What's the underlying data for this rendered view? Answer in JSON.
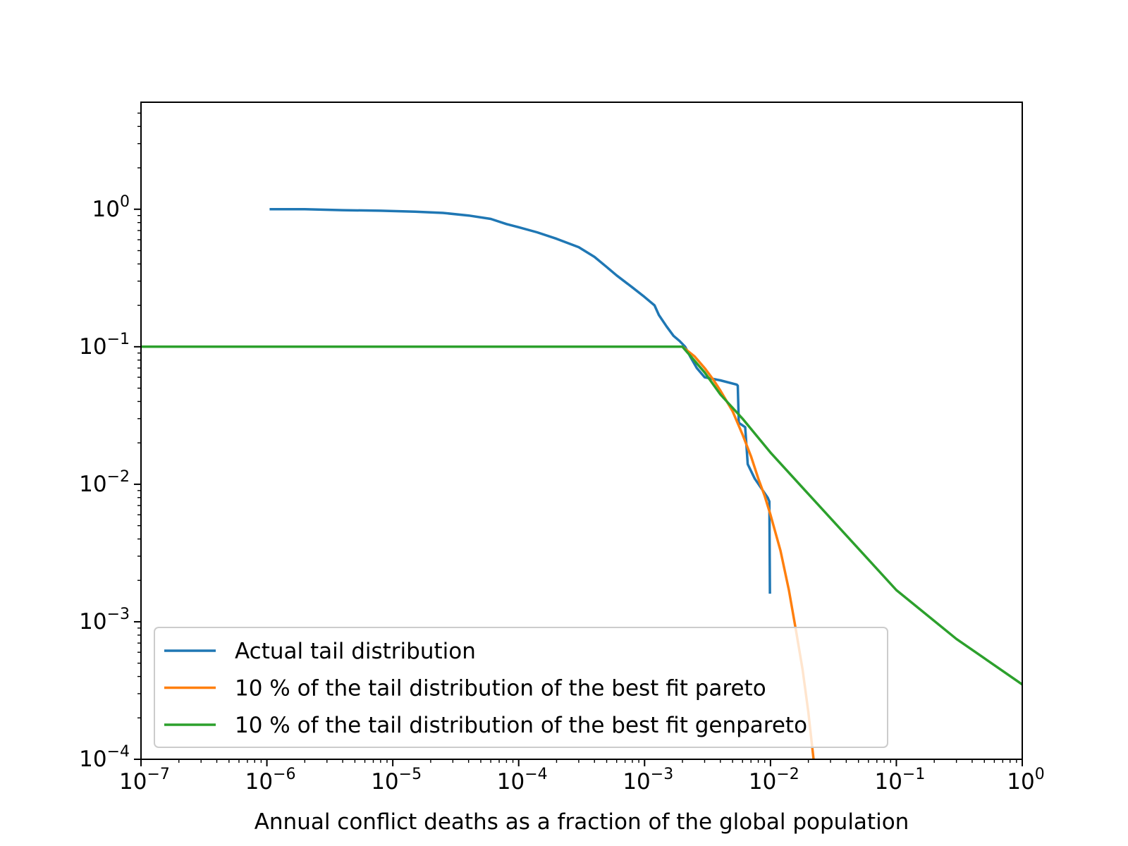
{
  "chart_data": {
    "type": "line",
    "title": "",
    "xlabel": "Annual conflict deaths as a fraction of the global population",
    "ylabel": "",
    "xscale": "log",
    "yscale": "log",
    "xlim": [
      1e-07,
      1
    ],
    "ylim": [
      0.0001,
      6
    ],
    "x_ticks": [
      {
        "base": "10",
        "exp": "−7"
      },
      {
        "base": "10",
        "exp": "−6"
      },
      {
        "base": "10",
        "exp": "−5"
      },
      {
        "base": "10",
        "exp": "−4"
      },
      {
        "base": "10",
        "exp": "−3"
      },
      {
        "base": "10",
        "exp": "−2"
      },
      {
        "base": "10",
        "exp": "−1"
      },
      {
        "base": "10",
        "exp": "0"
      }
    ],
    "y_ticks": [
      {
        "base": "10",
        "exp": "0"
      },
      {
        "base": "10",
        "exp": "−1"
      },
      {
        "base": "10",
        "exp": "−2"
      },
      {
        "base": "10",
        "exp": "−3"
      },
      {
        "base": "10",
        "exp": "−4"
      }
    ],
    "legend_position": "lower-left",
    "series": [
      {
        "name": "Actual tail distribution",
        "color": "#1f77b4",
        "points": [
          [
            1.05e-06,
            1.0
          ],
          [
            2e-06,
            1.0
          ],
          [
            4e-06,
            0.985
          ],
          [
            8e-06,
            0.975
          ],
          [
            1.5e-05,
            0.96
          ],
          [
            2.5e-05,
            0.94
          ],
          [
            4e-05,
            0.9
          ],
          [
            6e-05,
            0.85
          ],
          [
            8e-05,
            0.78
          ],
          [
            0.0001,
            0.74
          ],
          [
            0.00014,
            0.68
          ],
          [
            0.0002,
            0.61
          ],
          [
            0.0003,
            0.53
          ],
          [
            0.0004,
            0.45
          ],
          [
            0.0005,
            0.38
          ],
          [
            0.0006,
            0.33
          ],
          [
            0.0008,
            0.27
          ],
          [
            0.001,
            0.23
          ],
          [
            0.0012,
            0.2
          ],
          [
            0.0013,
            0.17
          ],
          [
            0.0015,
            0.14
          ],
          [
            0.0017,
            0.12
          ],
          [
            0.0019,
            0.11
          ],
          [
            0.0021,
            0.1
          ],
          [
            0.0023,
            0.085
          ],
          [
            0.0026,
            0.07
          ],
          [
            0.003,
            0.06
          ],
          [
            0.004,
            0.057
          ],
          [
            0.0054,
            0.053
          ],
          [
            0.0055,
            0.052
          ],
          [
            0.0056,
            0.028
          ],
          [
            0.0063,
            0.026
          ],
          [
            0.0066,
            0.014
          ],
          [
            0.0075,
            0.011
          ],
          [
            0.0095,
            0.008
          ],
          [
            0.0098,
            0.0075
          ],
          [
            0.0099,
            0.0016
          ]
        ]
      },
      {
        "name": "10 % of the tail distribution of the best fit pareto",
        "color": "#ff7f0e",
        "points": [
          [
            0.002,
            0.1
          ],
          [
            0.0025,
            0.085
          ],
          [
            0.003,
            0.07
          ],
          [
            0.0035,
            0.058
          ],
          [
            0.004,
            0.048
          ],
          [
            0.005,
            0.034
          ],
          [
            0.006,
            0.023
          ],
          [
            0.007,
            0.016
          ],
          [
            0.008,
            0.011
          ],
          [
            0.009,
            0.0082
          ],
          [
            0.01,
            0.006
          ],
          [
            0.012,
            0.0033
          ],
          [
            0.014,
            0.0017
          ],
          [
            0.016,
            0.00085
          ],
          [
            0.018,
            0.00045
          ],
          [
            0.02,
            0.00022
          ],
          [
            0.022,
            0.0001
          ]
        ]
      },
      {
        "name": "10 % of the tail distribution of the best fit genpareto",
        "color": "#2ca02c",
        "points": [
          [
            1e-07,
            0.1
          ],
          [
            0.002,
            0.1
          ],
          [
            0.0025,
            0.079
          ],
          [
            0.003,
            0.065
          ],
          [
            0.004,
            0.045
          ],
          [
            0.006,
            0.03
          ],
          [
            0.01,
            0.017
          ],
          [
            0.02,
            0.0085
          ],
          [
            0.05,
            0.0034
          ],
          [
            0.1,
            0.0017
          ],
          [
            0.3,
            0.00075
          ],
          [
            1.0,
            0.00035
          ]
        ]
      }
    ]
  }
}
